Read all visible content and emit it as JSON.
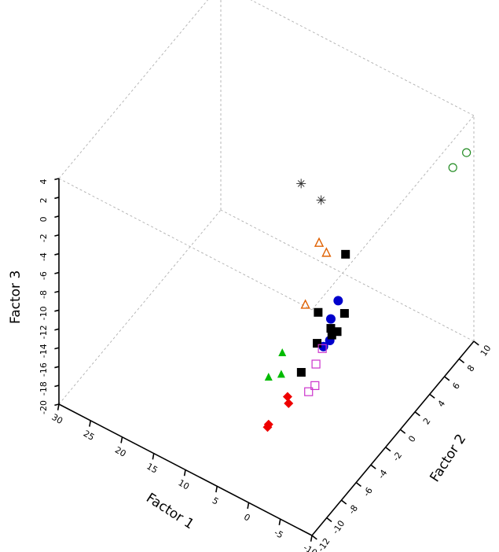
{
  "chart_data": {
    "type": "scatter3d",
    "grid": true,
    "axes": {
      "x": {
        "label": "Factor 1",
        "ticks": [
          "-10",
          "-5",
          "0",
          "5",
          "10",
          "15",
          "20",
          "25",
          "30"
        ]
      },
      "y": {
        "label": "Factor 2",
        "ticks": [
          "-12",
          "-10",
          "-8",
          "-6",
          "-4",
          "-2",
          "0",
          "2",
          "4",
          "6",
          "8",
          "10"
        ]
      },
      "z": {
        "label": "Factor 3",
        "ticks": [
          "-20",
          "-18",
          "-16",
          "-14",
          "-12",
          "-10",
          "-8",
          "-6",
          "-4",
          "-2",
          "0",
          "2",
          "4"
        ]
      }
    },
    "series": [
      {
        "marker": "asterisk",
        "color": "#333333",
        "points": [
          [
            6,
            3,
            -4
          ],
          [
            8,
            2,
            -2
          ]
        ]
      },
      {
        "marker": "triangle-open",
        "color": "#e06000",
        "points": [
          [
            4,
            2,
            -8
          ],
          [
            4,
            1,
            -6
          ],
          [
            5,
            0,
            -12
          ]
        ]
      },
      {
        "marker": "circle-open",
        "color": "#228b22",
        "points": [
          [
            -9,
            8,
            0
          ],
          [
            -10,
            9,
            1
          ]
        ]
      },
      {
        "marker": "circle-filled",
        "color": "#0000cc",
        "points": [
          [
            -6,
            -6,
            -4
          ],
          [
            -6,
            -5,
            -3
          ],
          [
            -7,
            -7,
            -5
          ],
          [
            -6,
            -7,
            -6
          ]
        ]
      },
      {
        "marker": "square-filled",
        "color": "#000000",
        "points": [
          [
            -6,
            -6,
            -5
          ],
          [
            -7,
            -5,
            -4
          ],
          [
            -5,
            -7,
            -6
          ],
          [
            -6,
            -4,
            1
          ],
          [
            -4,
            -6,
            -4
          ],
          [
            -5,
            -5,
            -7
          ],
          [
            -7,
            -6,
            -5
          ],
          [
            1,
            -4,
            -14
          ]
        ]
      },
      {
        "marker": "square-open",
        "color": "#cc33cc",
        "points": [
          [
            0,
            -3,
            -16
          ],
          [
            1,
            -2,
            -15
          ],
          [
            1,
            -3,
            -17
          ],
          [
            0,
            -2,
            -13
          ]
        ]
      },
      {
        "marker": "triangle-filled",
        "color": "#00bb00",
        "points": [
          [
            3,
            -5,
            -14
          ],
          [
            4,
            -4,
            -13
          ],
          [
            5,
            -5,
            -15
          ]
        ]
      },
      {
        "marker": "diamond-filled",
        "color": "#ee0000",
        "points": [
          [
            3,
            -4,
            -18
          ],
          [
            5,
            -5,
            -20
          ],
          [
            4,
            -6,
            -19
          ],
          [
            2,
            -5,
            -16
          ]
        ]
      }
    ]
  }
}
